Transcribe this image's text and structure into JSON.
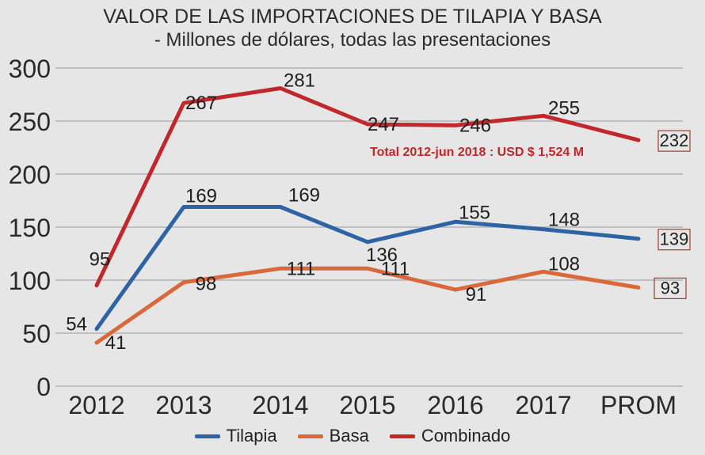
{
  "chart_data": {
    "type": "line",
    "title": "VALOR DE LAS IMPORTACIONES DE TILAPIA Y BASA",
    "subtitle": "- Millones de dólares, todas las presentaciones",
    "categories": [
      "2012",
      "2013",
      "2014",
      "2015",
      "2016",
      "2017",
      "PROM"
    ],
    "ylim": [
      0,
      300
    ],
    "yticks": [
      0,
      50,
      100,
      150,
      200,
      250,
      300
    ],
    "grid": "horizontal",
    "legend_position": "bottom",
    "series": [
      {
        "name": "Tilapia",
        "color": "#2e64a3",
        "values": [
          54,
          169,
          169,
          136,
          155,
          148,
          139
        ]
      },
      {
        "name": "Basa",
        "color": "#d9693a",
        "values": [
          41,
          98,
          111,
          111,
          91,
          108,
          93
        ]
      },
      {
        "name": "Combinado",
        "color": "#c0282c",
        "values": [
          95,
          267,
          281,
          247,
          246,
          255,
          232
        ]
      }
    ],
    "annotation": {
      "text": "Total 2012-jun 2018 : USD $ 1,524 M",
      "color": "#c0282c"
    }
  }
}
